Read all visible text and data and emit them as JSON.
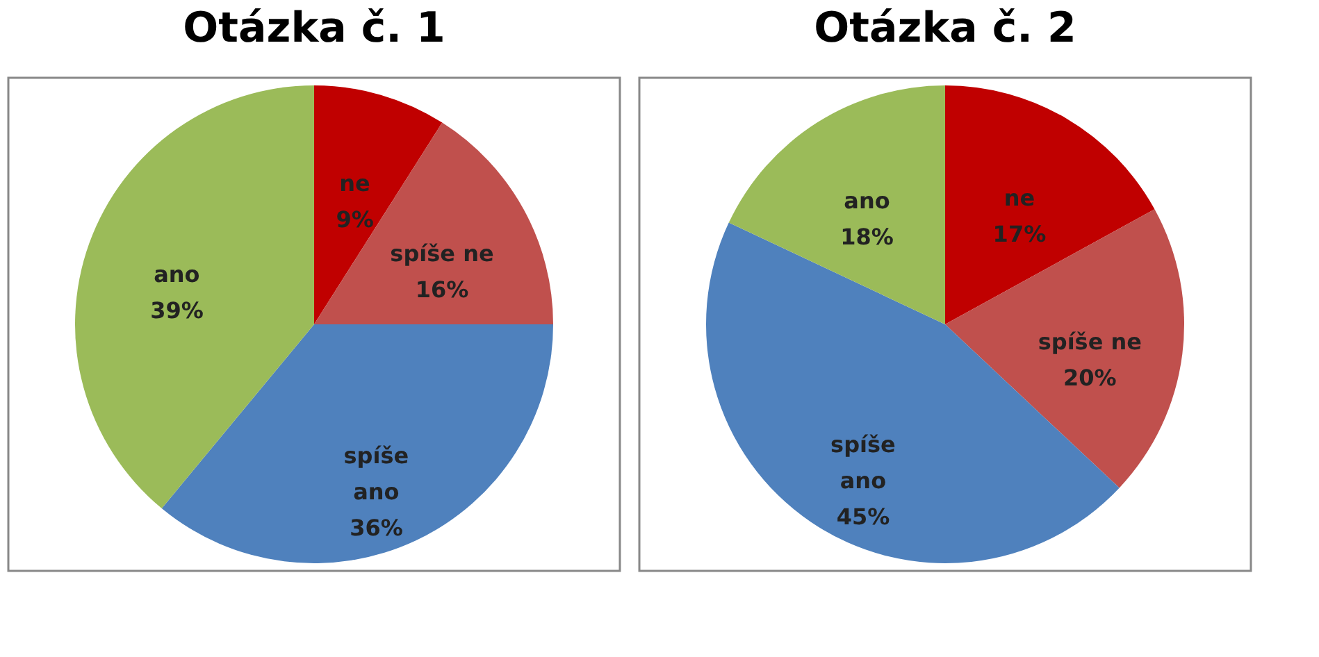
{
  "chart_data": [
    {
      "type": "pie",
      "title": "Otázka č. 1",
      "categories": [
        "ne",
        "spíše ne",
        "spíše ano",
        "ano"
      ],
      "values": [
        9,
        16,
        36,
        39
      ],
      "value_labels": [
        "9%",
        "16%",
        "36%",
        "39%"
      ],
      "colors": [
        "#c00000",
        "#c0504d",
        "#4f81bd",
        "#9bbb59"
      ],
      "legend": false
    },
    {
      "type": "pie",
      "title": "Otázka č. 2",
      "categories": [
        "ne",
        "spíše ne",
        "spíše ano",
        "ano"
      ],
      "values": [
        17,
        20,
        45,
        18
      ],
      "value_labels": [
        "17%",
        "20%",
        "45%",
        "18%"
      ],
      "colors": [
        "#c00000",
        "#c0504d",
        "#4f81bd",
        "#9bbb59"
      ],
      "legend": false
    }
  ]
}
